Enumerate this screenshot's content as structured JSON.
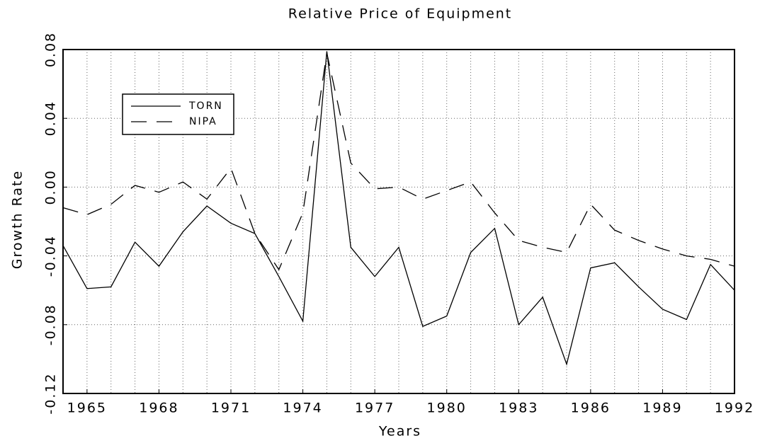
{
  "chart_data": {
    "type": "line",
    "title": "Relative Price of Equipment",
    "xlabel": "Years",
    "ylabel": "Growth Rate",
    "x": [
      1964,
      1965,
      1966,
      1967,
      1968,
      1969,
      1970,
      1971,
      1972,
      1973,
      1974,
      1975,
      1976,
      1977,
      1978,
      1979,
      1980,
      1981,
      1982,
      1983,
      1984,
      1985,
      1986,
      1987,
      1988,
      1989,
      1990,
      1991,
      1992
    ],
    "series": [
      {
        "name": "TORN",
        "color": "#000000",
        "dash": "solid",
        "values": [
          -0.034,
          -0.059,
          -0.058,
          -0.032,
          -0.046,
          -0.026,
          -0.011,
          -0.021,
          -0.027,
          -0.052,
          -0.078,
          0.079,
          -0.035,
          -0.052,
          -0.035,
          -0.081,
          -0.075,
          -0.038,
          -0.024,
          -0.08,
          -0.064,
          -0.103,
          -0.047,
          -0.044,
          -0.058,
          -0.071,
          -0.077,
          -0.045,
          -0.06
        ]
      },
      {
        "name": "NIPA",
        "color": "#000000",
        "dash": "dashed",
        "values": [
          -0.012,
          -0.016,
          -0.01,
          0.001,
          -0.003,
          0.003,
          -0.007,
          0.011,
          -0.027,
          -0.048,
          -0.015,
          0.078,
          0.014,
          -0.001,
          0.0,
          -0.007,
          -0.002,
          0.003,
          -0.015,
          -0.031,
          -0.035,
          -0.038,
          -0.01,
          -0.025,
          -0.031,
          -0.036,
          -0.04,
          -0.042,
          -0.046
        ]
      }
    ],
    "xlim": [
      1964,
      1992
    ],
    "xticks": [
      1965,
      1968,
      1971,
      1974,
      1977,
      1980,
      1983,
      1986,
      1989,
      1992
    ],
    "xgrid": [
      1965,
      1966,
      1967,
      1968,
      1969,
      1970,
      1971,
      1972,
      1973,
      1974,
      1975,
      1976,
      1977,
      1978,
      1979,
      1980,
      1981,
      1982,
      1983,
      1984,
      1985,
      1986,
      1987,
      1988,
      1989,
      1990,
      1991
    ],
    "ylim": [
      -0.12,
      0.08
    ],
    "yticks": [
      {
        "value": -0.12,
        "label": "-0.12"
      },
      {
        "value": -0.08,
        "label": "-0.08"
      },
      {
        "value": -0.04,
        "label": "-0.04"
      },
      {
        "value": 0,
        "label": "0.00"
      },
      {
        "value": 0.04,
        "label": "0.04"
      },
      {
        "value": 0.08,
        "label": "0.08"
      }
    ],
    "grid": true,
    "legend": "upper left"
  }
}
